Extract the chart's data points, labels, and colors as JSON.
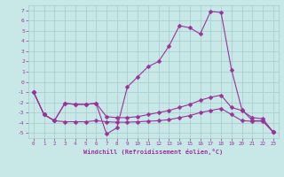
{
  "xlabel": "Windchill (Refroidissement éolien,°C)",
  "bg_color": "#c8e8e8",
  "grid_color": "#a8d0d0",
  "line_color": "#993399",
  "xlim": [
    -0.5,
    23.5
  ],
  "ylim": [
    -5.5,
    7.5
  ],
  "xticks": [
    0,
    1,
    2,
    3,
    4,
    5,
    6,
    7,
    8,
    9,
    10,
    11,
    12,
    13,
    14,
    15,
    16,
    17,
    18,
    19,
    20,
    21,
    22,
    23
  ],
  "yticks": [
    -5,
    -4,
    -3,
    -2,
    -1,
    0,
    1,
    2,
    3,
    4,
    5,
    6,
    7
  ],
  "line1_x": [
    0,
    1,
    2,
    3,
    4,
    5,
    6,
    7,
    8,
    9,
    10,
    11,
    12,
    13,
    14,
    15,
    16,
    17,
    18,
    19,
    20,
    21,
    22,
    23
  ],
  "line1_y": [
    -1,
    -3.2,
    -3.8,
    -2.1,
    -2.2,
    -2.2,
    -2.1,
    -5.1,
    -4.5,
    -0.5,
    0.5,
    1.5,
    2.0,
    3.5,
    5.5,
    5.3,
    4.7,
    6.9,
    6.8,
    1.2,
    -2.7,
    -3.8,
    -3.8,
    -4.9
  ],
  "line2_x": [
    0,
    1,
    2,
    3,
    4,
    5,
    6,
    7,
    8,
    9,
    10,
    11,
    12,
    13,
    14,
    15,
    16,
    17,
    18,
    19,
    20,
    21,
    22,
    23
  ],
  "line2_y": [
    -1,
    -3.2,
    -3.8,
    -2.1,
    -2.2,
    -2.2,
    -2.1,
    -3.4,
    -3.5,
    -3.5,
    -3.4,
    -3.2,
    -3.0,
    -2.8,
    -2.5,
    -2.2,
    -1.8,
    -1.5,
    -1.3,
    -2.5,
    -2.8,
    -3.5,
    -3.6,
    -4.9
  ],
  "line3_x": [
    0,
    1,
    2,
    3,
    4,
    5,
    6,
    7,
    8,
    9,
    10,
    11,
    12,
    13,
    14,
    15,
    16,
    17,
    18,
    19,
    20,
    21,
    22,
    23
  ],
  "line3_y": [
    -1,
    -3.2,
    -3.8,
    -3.9,
    -3.9,
    -3.9,
    -3.8,
    -3.9,
    -3.95,
    -3.95,
    -3.9,
    -3.85,
    -3.8,
    -3.7,
    -3.5,
    -3.3,
    -3.0,
    -2.8,
    -2.6,
    -3.2,
    -3.8,
    -3.85,
    -3.85,
    -4.9
  ]
}
